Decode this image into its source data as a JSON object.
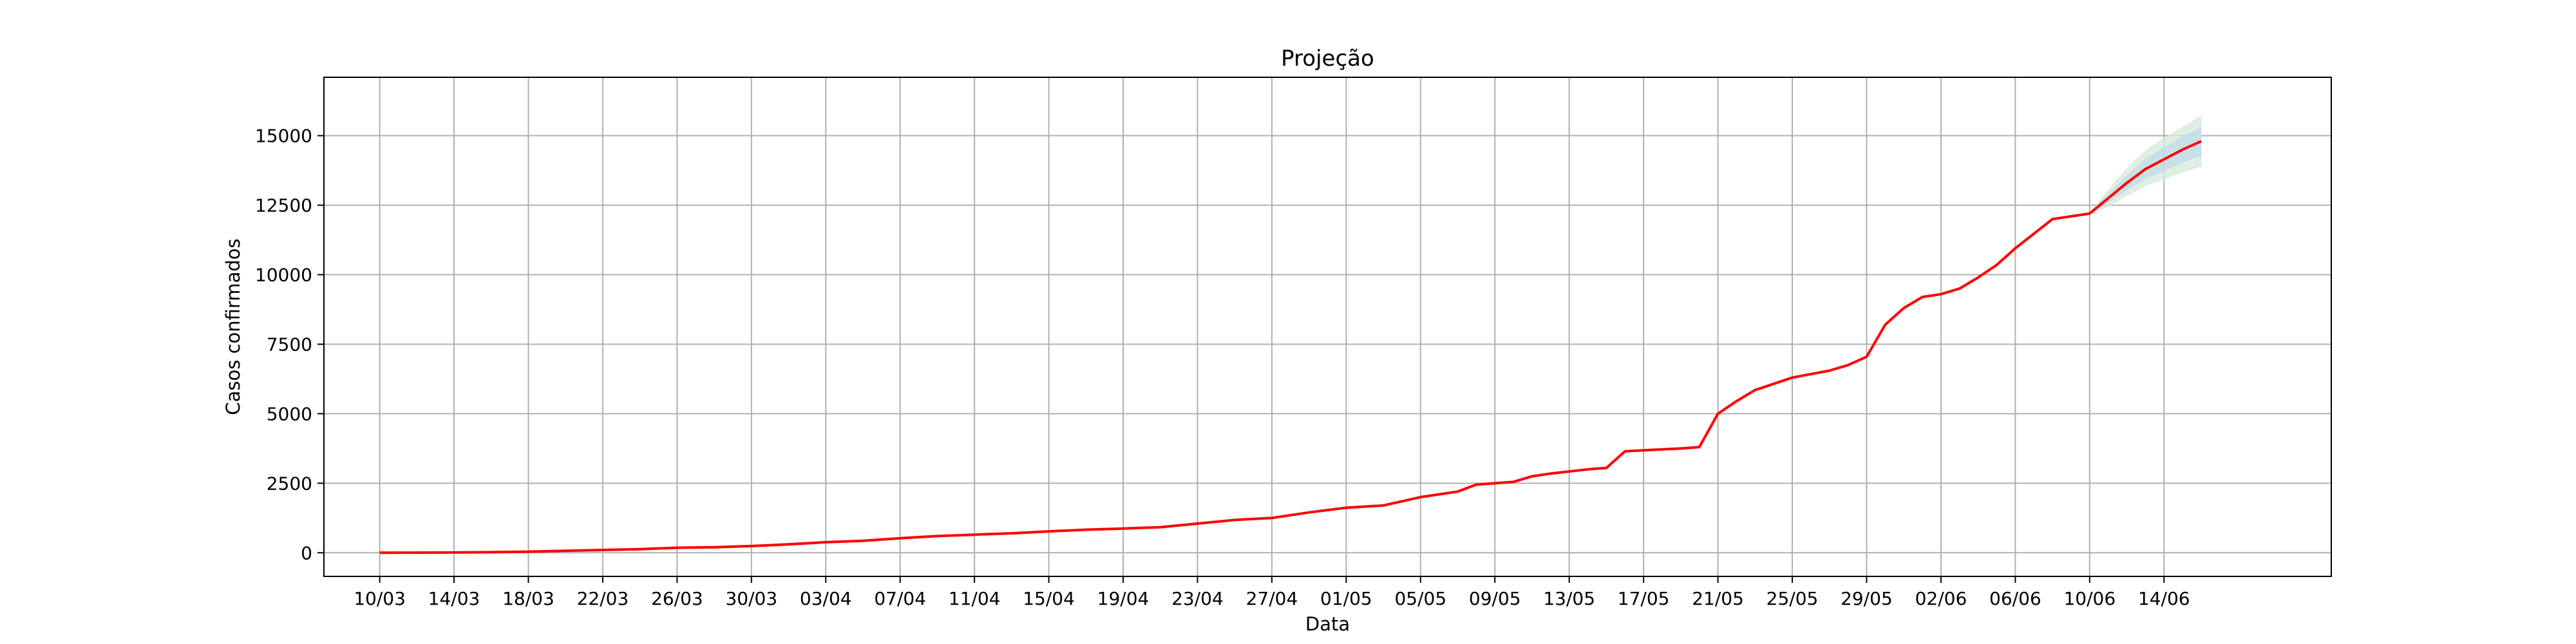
{
  "chart_data": {
    "type": "line",
    "title": "Projeção",
    "xlabel": "Data",
    "ylabel": "Casos confirmados",
    "grid": true,
    "x_range": [
      "2020-03-07",
      "2020-06-23"
    ],
    "ylim": [
      -850,
      17100
    ],
    "x_ticks": [
      "10/03",
      "14/03",
      "18/03",
      "22/03",
      "26/03",
      "30/03",
      "03/04",
      "07/04",
      "11/04",
      "15/04",
      "19/04",
      "23/04",
      "27/04",
      "01/05",
      "05/05",
      "09/05",
      "13/05",
      "17/05",
      "21/05",
      "25/05",
      "29/05",
      "02/06",
      "06/06",
      "10/06",
      "14/06"
    ],
    "y_ticks": [
      0,
      2500,
      5000,
      7500,
      10000,
      12500,
      15000
    ],
    "y_tick_labels": [
      "0",
      "2500",
      "5000",
      "7500",
      "10000",
      "12500",
      "15000"
    ],
    "colors": {
      "line": "#ff0000",
      "band_outer": "#d4ead8",
      "band_inner": "#c4dcea",
      "grid": "#b0b0b0",
      "axes": "#000000"
    },
    "series": [
      {
        "kind": "observed",
        "x": [
          "2020-03-10",
          "2020-03-12",
          "2020-03-14",
          "2020-03-16",
          "2020-03-18",
          "2020-03-20",
          "2020-03-22",
          "2020-03-24",
          "2020-03-26",
          "2020-03-28",
          "2020-03-30",
          "2020-04-01",
          "2020-04-03",
          "2020-04-05",
          "2020-04-07",
          "2020-04-09",
          "2020-04-11",
          "2020-04-13",
          "2020-04-15",
          "2020-04-17",
          "2020-04-19",
          "2020-04-21",
          "2020-04-23",
          "2020-04-25",
          "2020-04-27",
          "2020-04-29",
          "2020-05-01",
          "2020-05-03",
          "2020-05-05",
          "2020-05-07",
          "2020-05-08",
          "2020-05-10",
          "2020-05-11",
          "2020-05-12",
          "2020-05-14",
          "2020-05-15",
          "2020-05-16",
          "2020-05-18",
          "2020-05-19",
          "2020-05-20",
          "2020-05-21",
          "2020-05-22",
          "2020-05-23",
          "2020-05-25",
          "2020-05-27",
          "2020-05-28",
          "2020-05-29",
          "2020-05-30",
          "2020-05-31",
          "2020-06-01",
          "2020-06-02",
          "2020-06-03",
          "2020-06-04",
          "2020-06-05",
          "2020-06-06",
          "2020-06-08",
          "2020-06-10"
        ],
        "y": [
          0,
          5,
          10,
          20,
          40,
          70,
          100,
          130,
          180,
          200,
          240,
          300,
          380,
          430,
          520,
          600,
          650,
          700,
          770,
          830,
          870,
          920,
          1050,
          1180,
          1250,
          1450,
          1620,
          1700,
          2000,
          2200,
          2450,
          2550,
          2750,
          2850,
          3000,
          3050,
          3650,
          3720,
          3750,
          3800,
          5000,
          5450,
          5850,
          6300,
          6550,
          6750,
          7050,
          8200,
          8800,
          9200,
          9300,
          9500,
          9900,
          10350,
          10950,
          12000,
          12200
        ]
      },
      {
        "kind": "projection",
        "x": [
          "2020-06-10",
          "2020-06-11",
          "2020-06-12",
          "2020-06-13",
          "2020-06-14",
          "2020-06-15",
          "2020-06-16"
        ],
        "y": [
          12200,
          12750,
          13300,
          13800,
          14150,
          14500,
          14800
        ],
        "lower_outer": [
          12200,
          12450,
          12850,
          13200,
          13450,
          13700,
          13900
        ],
        "upper_outer": [
          12200,
          13050,
          13800,
          14450,
          14900,
          15300,
          15700
        ],
        "lower_inner": [
          12200,
          12600,
          13050,
          13450,
          13750,
          14050,
          14300
        ],
        "upper_inner": [
          12200,
          12900,
          13550,
          14150,
          14550,
          14950,
          15300
        ]
      }
    ]
  }
}
